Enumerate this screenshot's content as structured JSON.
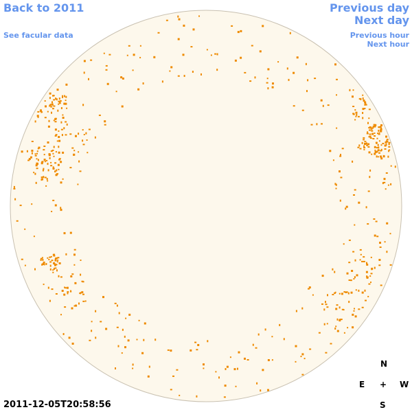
{
  "nav": {
    "back": "Back to 2011",
    "facular": "See facular data",
    "previous_day": "Previous day",
    "next_day": "Next day",
    "previous_hour": "Previous hour",
    "next_hour": "Next hour"
  },
  "timestamp": "2011-12-05T20:58:56",
  "compass": {
    "north": "N",
    "east": "E",
    "center": "+",
    "west": "W",
    "south": "S"
  }
}
